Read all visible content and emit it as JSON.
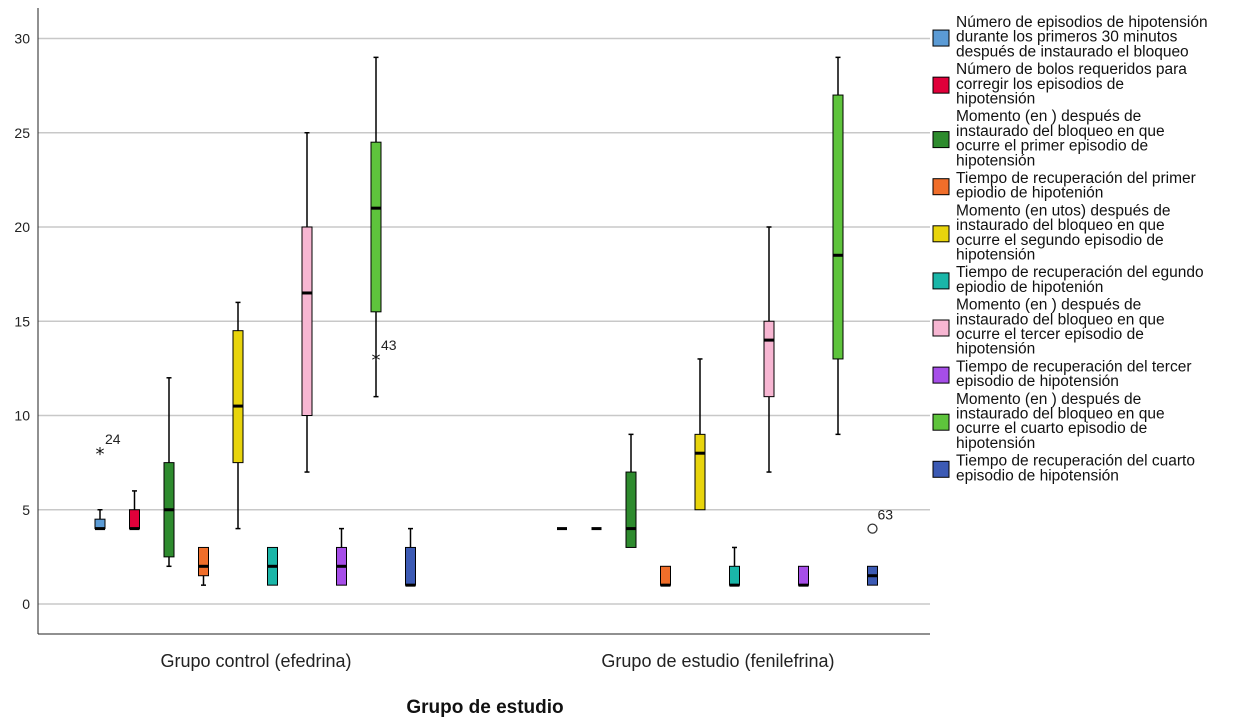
{
  "chart_data": {
    "type": "boxplot",
    "xlabel": "Grupo de estudio",
    "ylabel": "",
    "ylim": [
      -1.6,
      31.5
    ],
    "yticks": [
      0,
      5,
      10,
      15,
      20,
      25,
      30
    ],
    "grid": true,
    "legend_position": "right",
    "categories": [
      "Grupo control (efedrina)",
      "Grupo de estudio (fenilefrina)"
    ],
    "series": [
      {
        "name": "Número de episodios de hipotensión durante los primeros 30 minutos después de instaurado el bloqueo",
        "color": "#5b9bd5",
        "boxes": [
          {
            "min": 4,
            "q1": 4,
            "median": 4,
            "q3": 4.5,
            "max": 5,
            "outliers": [
              {
                "value": 8,
                "label": "24",
                "marker": "star"
              }
            ]
          },
          {
            "min": 4,
            "q1": 4,
            "median": 4,
            "q3": 4,
            "max": 4,
            "outliers": []
          }
        ]
      },
      {
        "name": "Número de bolos requeridos para corregir los episodios de hipotensión",
        "color": "#e0003a",
        "boxes": [
          {
            "min": 4,
            "q1": 4,
            "median": 4,
            "q3": 5,
            "max": 6,
            "outliers": []
          },
          {
            "min": 4,
            "q1": 4,
            "median": 4,
            "q3": 4,
            "max": 4,
            "outliers": []
          }
        ]
      },
      {
        "name": "Momento (en ) después de instaurado del bloqueo en que ocurre el primer episodio de hipotensión",
        "color": "#2e8b2e",
        "boxes": [
          {
            "min": 2,
            "q1": 2.5,
            "median": 5,
            "q3": 7.5,
            "max": 12,
            "outliers": []
          },
          {
            "min": 3,
            "q1": 3,
            "median": 4,
            "q3": 7,
            "max": 9,
            "outliers": []
          }
        ]
      },
      {
        "name": "Tiempo de recuperación del primer epiodio de hipotenión",
        "color": "#f06e2a",
        "boxes": [
          {
            "min": 1,
            "q1": 1.5,
            "median": 2,
            "q3": 3,
            "max": 3,
            "outliers": []
          },
          {
            "min": 1,
            "q1": 1,
            "median": 1,
            "q3": 2,
            "max": 2,
            "outliers": []
          }
        ]
      },
      {
        "name": "Momento (en utos) después de instaurado del bloqueo en que ocurre el segundo episodio de hipotensión",
        "color": "#e8d40c",
        "boxes": [
          {
            "min": 4,
            "q1": 7.5,
            "median": 10.5,
            "q3": 14.5,
            "max": 16,
            "outliers": []
          },
          {
            "min": 5,
            "q1": 5,
            "median": 8,
            "q3": 9,
            "max": 13,
            "outliers": []
          }
        ]
      },
      {
        "name": "Tiempo de recuperación del egundo epiodio de hipotenión",
        "color": "#1ab6a8",
        "boxes": [
          {
            "min": 1,
            "q1": 1,
            "median": 2,
            "q3": 3,
            "max": 3,
            "outliers": []
          },
          {
            "min": 1,
            "q1": 1,
            "median": 1,
            "q3": 2,
            "max": 3,
            "outliers": []
          }
        ]
      },
      {
        "name": "Momento (en ) después de instaurado del bloqueo en que ocurre el tercer episodio de hipotensión",
        "color": "#f7b6d2",
        "boxes": [
          {
            "min": 7,
            "q1": 10,
            "median": 16.5,
            "q3": 20,
            "max": 25,
            "outliers": []
          },
          {
            "min": 7,
            "q1": 11,
            "median": 14,
            "q3": 15,
            "max": 20,
            "outliers": []
          }
        ]
      },
      {
        "name": "Tiempo de recuperación del tercer episodio de hipotensión",
        "color": "#a64ee8",
        "boxes": [
          {
            "min": 1,
            "q1": 1,
            "median": 2,
            "q3": 3,
            "max": 4,
            "outliers": []
          },
          {
            "min": 1,
            "q1": 1,
            "median": 1,
            "q3": 2,
            "max": 2,
            "outliers": []
          }
        ]
      },
      {
        "name": "Momento (en ) después de instaurado del bloqueo en que ocurre el cuarto episodio de hipotensión",
        "color": "#5ec43c",
        "boxes": [
          {
            "min": 11,
            "q1": 15.5,
            "median": 21,
            "q3": 24.5,
            "max": 29,
            "outliers": [
              {
                "value": 13,
                "label": "43",
                "marker": "star"
              }
            ]
          },
          {
            "min": 9,
            "q1": 13,
            "median": 18.5,
            "q3": 27,
            "max": 29,
            "outliers": []
          }
        ]
      },
      {
        "name": "Tiempo de recuperación del cuarto episodio de hipotensión",
        "color": "#3c5ab4",
        "boxes": [
          {
            "min": 1,
            "q1": 1,
            "median": 1,
            "q3": 3,
            "max": 4,
            "outliers": []
          },
          {
            "min": 1,
            "q1": 1,
            "median": 1.5,
            "q3": 2,
            "max": 2,
            "outliers": [
              {
                "value": 4,
                "label": "63",
                "marker": "circle"
              }
            ]
          }
        ]
      }
    ]
  }
}
